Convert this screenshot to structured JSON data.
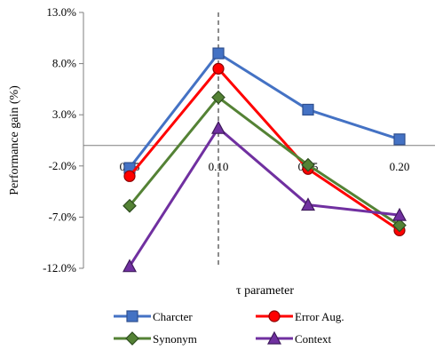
{
  "chart_data": {
    "type": "line",
    "x_categories": [
      "0.05",
      "0.10",
      "0.15",
      "0.20"
    ],
    "xlabel": "τ parameter",
    "ylabel": "Performance gain (%)",
    "ylim": [
      -12.0,
      13.0
    ],
    "y_ticks": [
      13.0,
      8.0,
      3.0,
      -2.0,
      -7.0,
      -12.0
    ],
    "y_tick_labels": [
      "13.0%",
      "8.0%",
      "3.0%",
      "-2.0%",
      "-7.0%",
      "-12.0%"
    ],
    "reference_line_x": "0.10",
    "grid": false,
    "legend_position": "bottom",
    "series": [
      {
        "name": "Charcter",
        "color": "#4472C4",
        "marker": "square",
        "values": [
          -2.2,
          9.0,
          3.5,
          0.6
        ]
      },
      {
        "name": "Error Aug.",
        "color": "#FF0000",
        "marker": "circle",
        "values": [
          -3.0,
          7.5,
          -2.3,
          -8.3
        ]
      },
      {
        "name": "Synonym",
        "color": "#548235",
        "marker": "diamond",
        "values": [
          -5.9,
          4.7,
          -1.9,
          -7.8
        ]
      },
      {
        "name": "Context",
        "color": "#7030A0",
        "marker": "triangle",
        "values": [
          -11.8,
          1.7,
          -5.8,
          -6.8
        ]
      }
    ]
  }
}
